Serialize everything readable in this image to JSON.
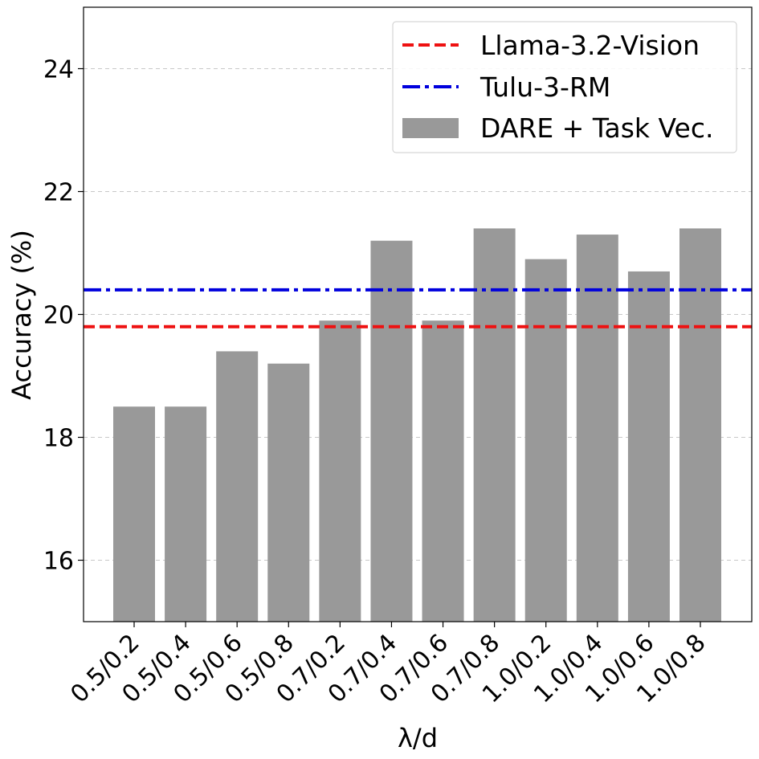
{
  "chart_data": {
    "type": "bar",
    "xlabel": "λ/d",
    "ylabel": "Accuracy (%)",
    "ylim": [
      15,
      25
    ],
    "yticks": [
      16,
      18,
      20,
      22,
      24
    ],
    "grid": "y-dashed",
    "legend_position": "top-right",
    "categories": [
      "0.5/0.2",
      "0.5/0.4",
      "0.5/0.6",
      "0.5/0.8",
      "0.7/0.2",
      "0.7/0.4",
      "0.7/0.6",
      "0.7/0.8",
      "1.0/0.2",
      "1.0/0.4",
      "1.0/0.6",
      "1.0/0.8"
    ],
    "series": [
      {
        "name": "DARE + Task Vec.",
        "kind": "bar",
        "color": "#999999",
        "values": [
          18.5,
          18.5,
          19.4,
          19.2,
          19.9,
          21.2,
          19.9,
          21.4,
          20.9,
          21.3,
          20.7,
          21.4
        ]
      }
    ],
    "reference_lines": [
      {
        "name": "Llama-3.2-Vision",
        "value": 19.8,
        "color": "#ee1111",
        "style": "dashed"
      },
      {
        "name": "Tulu-3-RM",
        "value": 20.4,
        "color": "#0000dd",
        "style": "dashdot"
      }
    ]
  }
}
